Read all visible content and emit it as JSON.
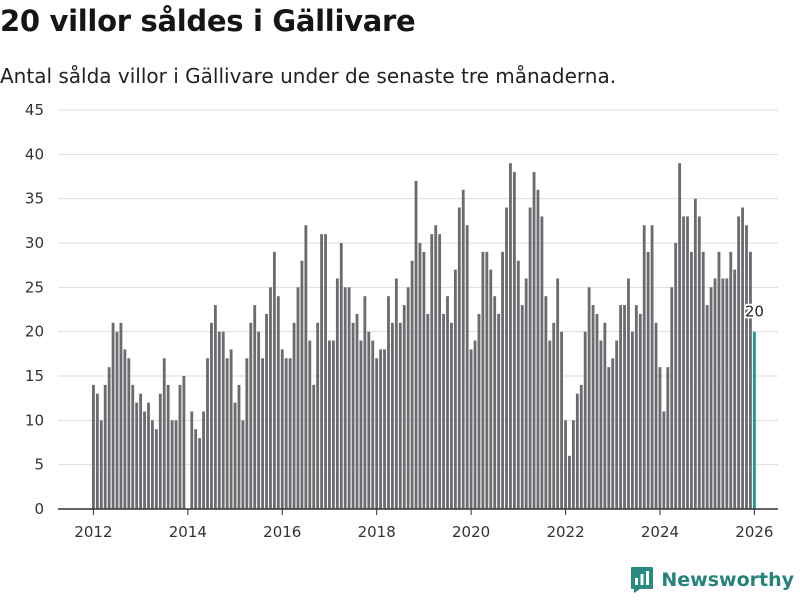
{
  "title": "20 villor såldes i Gällivare",
  "subtitle": "Antal sålda villor i Gällivare under de senaste tre månaderna.",
  "brand": {
    "name": "Newsworthy",
    "icon": "newsworthy-logo-icon",
    "color": "#2a8a80"
  },
  "colors": {
    "bar": "#6b6b70",
    "highlight": "#1b9a8e",
    "grid": "#dddddd",
    "axis": "#333333"
  },
  "chart_data": {
    "type": "bar",
    "title": "20 villor såldes i Gällivare",
    "xlabel": "",
    "ylabel": "",
    "ylim": [
      0,
      45
    ],
    "yticks": [
      0,
      5,
      10,
      15,
      20,
      25,
      30,
      35,
      40,
      45
    ],
    "xlim": [
      2011.25,
      2026.5
    ],
    "xticks": [
      2012,
      2014,
      2016,
      2018,
      2020,
      2022,
      2024,
      2026
    ],
    "x_start": 2012.0,
    "x_step": 0.08333,
    "highlight_last": true,
    "last_label": "20",
    "values": [
      14,
      13,
      10,
      14,
      16,
      21,
      20,
      21,
      18,
      17,
      14,
      12,
      13,
      11,
      12,
      10,
      9,
      13,
      17,
      14,
      10,
      10,
      14,
      15,
      0,
      11,
      9,
      8,
      11,
      17,
      21,
      23,
      20,
      20,
      17,
      18,
      12,
      14,
      10,
      17,
      21,
      23,
      20,
      17,
      22,
      25,
      29,
      24,
      18,
      17,
      17,
      21,
      25,
      28,
      32,
      19,
      14,
      21,
      31,
      31,
      19,
      19,
      26,
      30,
      25,
      25,
      21,
      22,
      19,
      24,
      20,
      19,
      17,
      18,
      18,
      24,
      21,
      26,
      21,
      23,
      25,
      28,
      37,
      30,
      29,
      22,
      31,
      32,
      31,
      22,
      24,
      21,
      27,
      34,
      36,
      32,
      18,
      19,
      22,
      29,
      29,
      27,
      24,
      22,
      29,
      34,
      39,
      38,
      28,
      23,
      26,
      34,
      38,
      36,
      33,
      24,
      19,
      21,
      26,
      20,
      10,
      6,
      10,
      13,
      14,
      20,
      25,
      23,
      22,
      19,
      21,
      16,
      17,
      19,
      23,
      23,
      26,
      20,
      23,
      22,
      32,
      29,
      32,
      21,
      16,
      11,
      16,
      25,
      30,
      39,
      33,
      33,
      29,
      35,
      33,
      29,
      23,
      25,
      26,
      29,
      26,
      26,
      29,
      27,
      33,
      34,
      32,
      29,
      20
    ]
  }
}
